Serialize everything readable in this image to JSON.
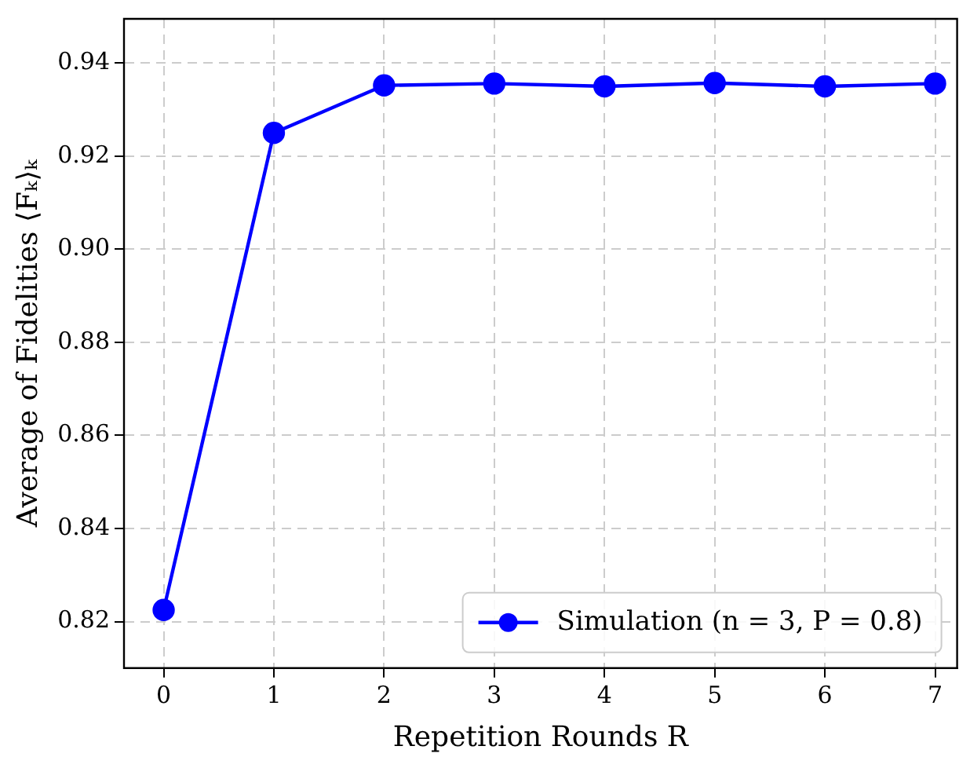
{
  "chart_data": {
    "type": "line",
    "xlabel": "Repetition Rounds R",
    "ylabel": "Average of Fidelities ⟨Fₖ⟩ₖ",
    "x": [
      0,
      1,
      2,
      3,
      4,
      5,
      6,
      7
    ],
    "series": [
      {
        "name": "Simulation (n = 3, P = 0.8)",
        "color": "#0000ff",
        "values": [
          0.8225,
          0.925,
          0.9352,
          0.9356,
          0.935,
          0.9357,
          0.935,
          0.9356
        ]
      }
    ],
    "xlim": [
      -0.36,
      7.2
    ],
    "xticks": [
      0,
      1,
      2,
      3,
      4,
      5,
      6,
      7
    ],
    "ylim": [
      0.81,
      0.9495
    ],
    "yticks": [
      0.82,
      0.84,
      0.86,
      0.88,
      {
        "value": 0.9,
        "label": "0.90"
      },
      0.92,
      0.94
    ],
    "grid": true,
    "legend": "bottom right",
    "marker": "circle",
    "line_style": "solid"
  }
}
